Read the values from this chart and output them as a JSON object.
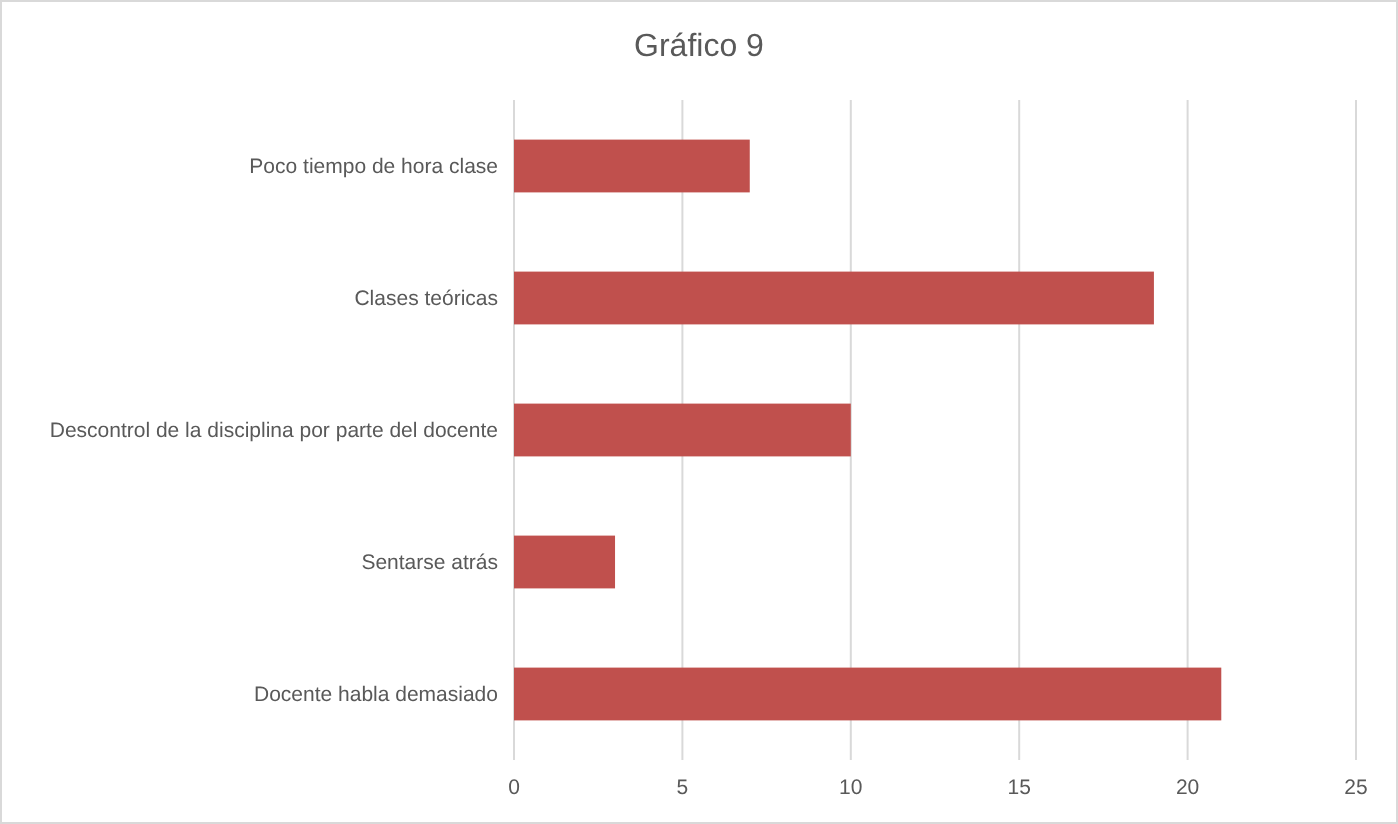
{
  "chart_data": {
    "type": "bar",
    "orientation": "horizontal",
    "title": "Gráfico 9",
    "categories": [
      "Poco tiempo de hora clase",
      "Clases teóricas",
      "Descontrol de la disciplina por parte del docente",
      "Sentarse atrás",
      "Docente habla demasiado"
    ],
    "values": [
      7,
      19,
      10,
      3,
      21
    ],
    "color": "#c0504d",
    "xlim": [
      0,
      25
    ],
    "xticks": [
      0,
      5,
      10,
      15,
      20,
      25
    ],
    "grid": "x"
  }
}
